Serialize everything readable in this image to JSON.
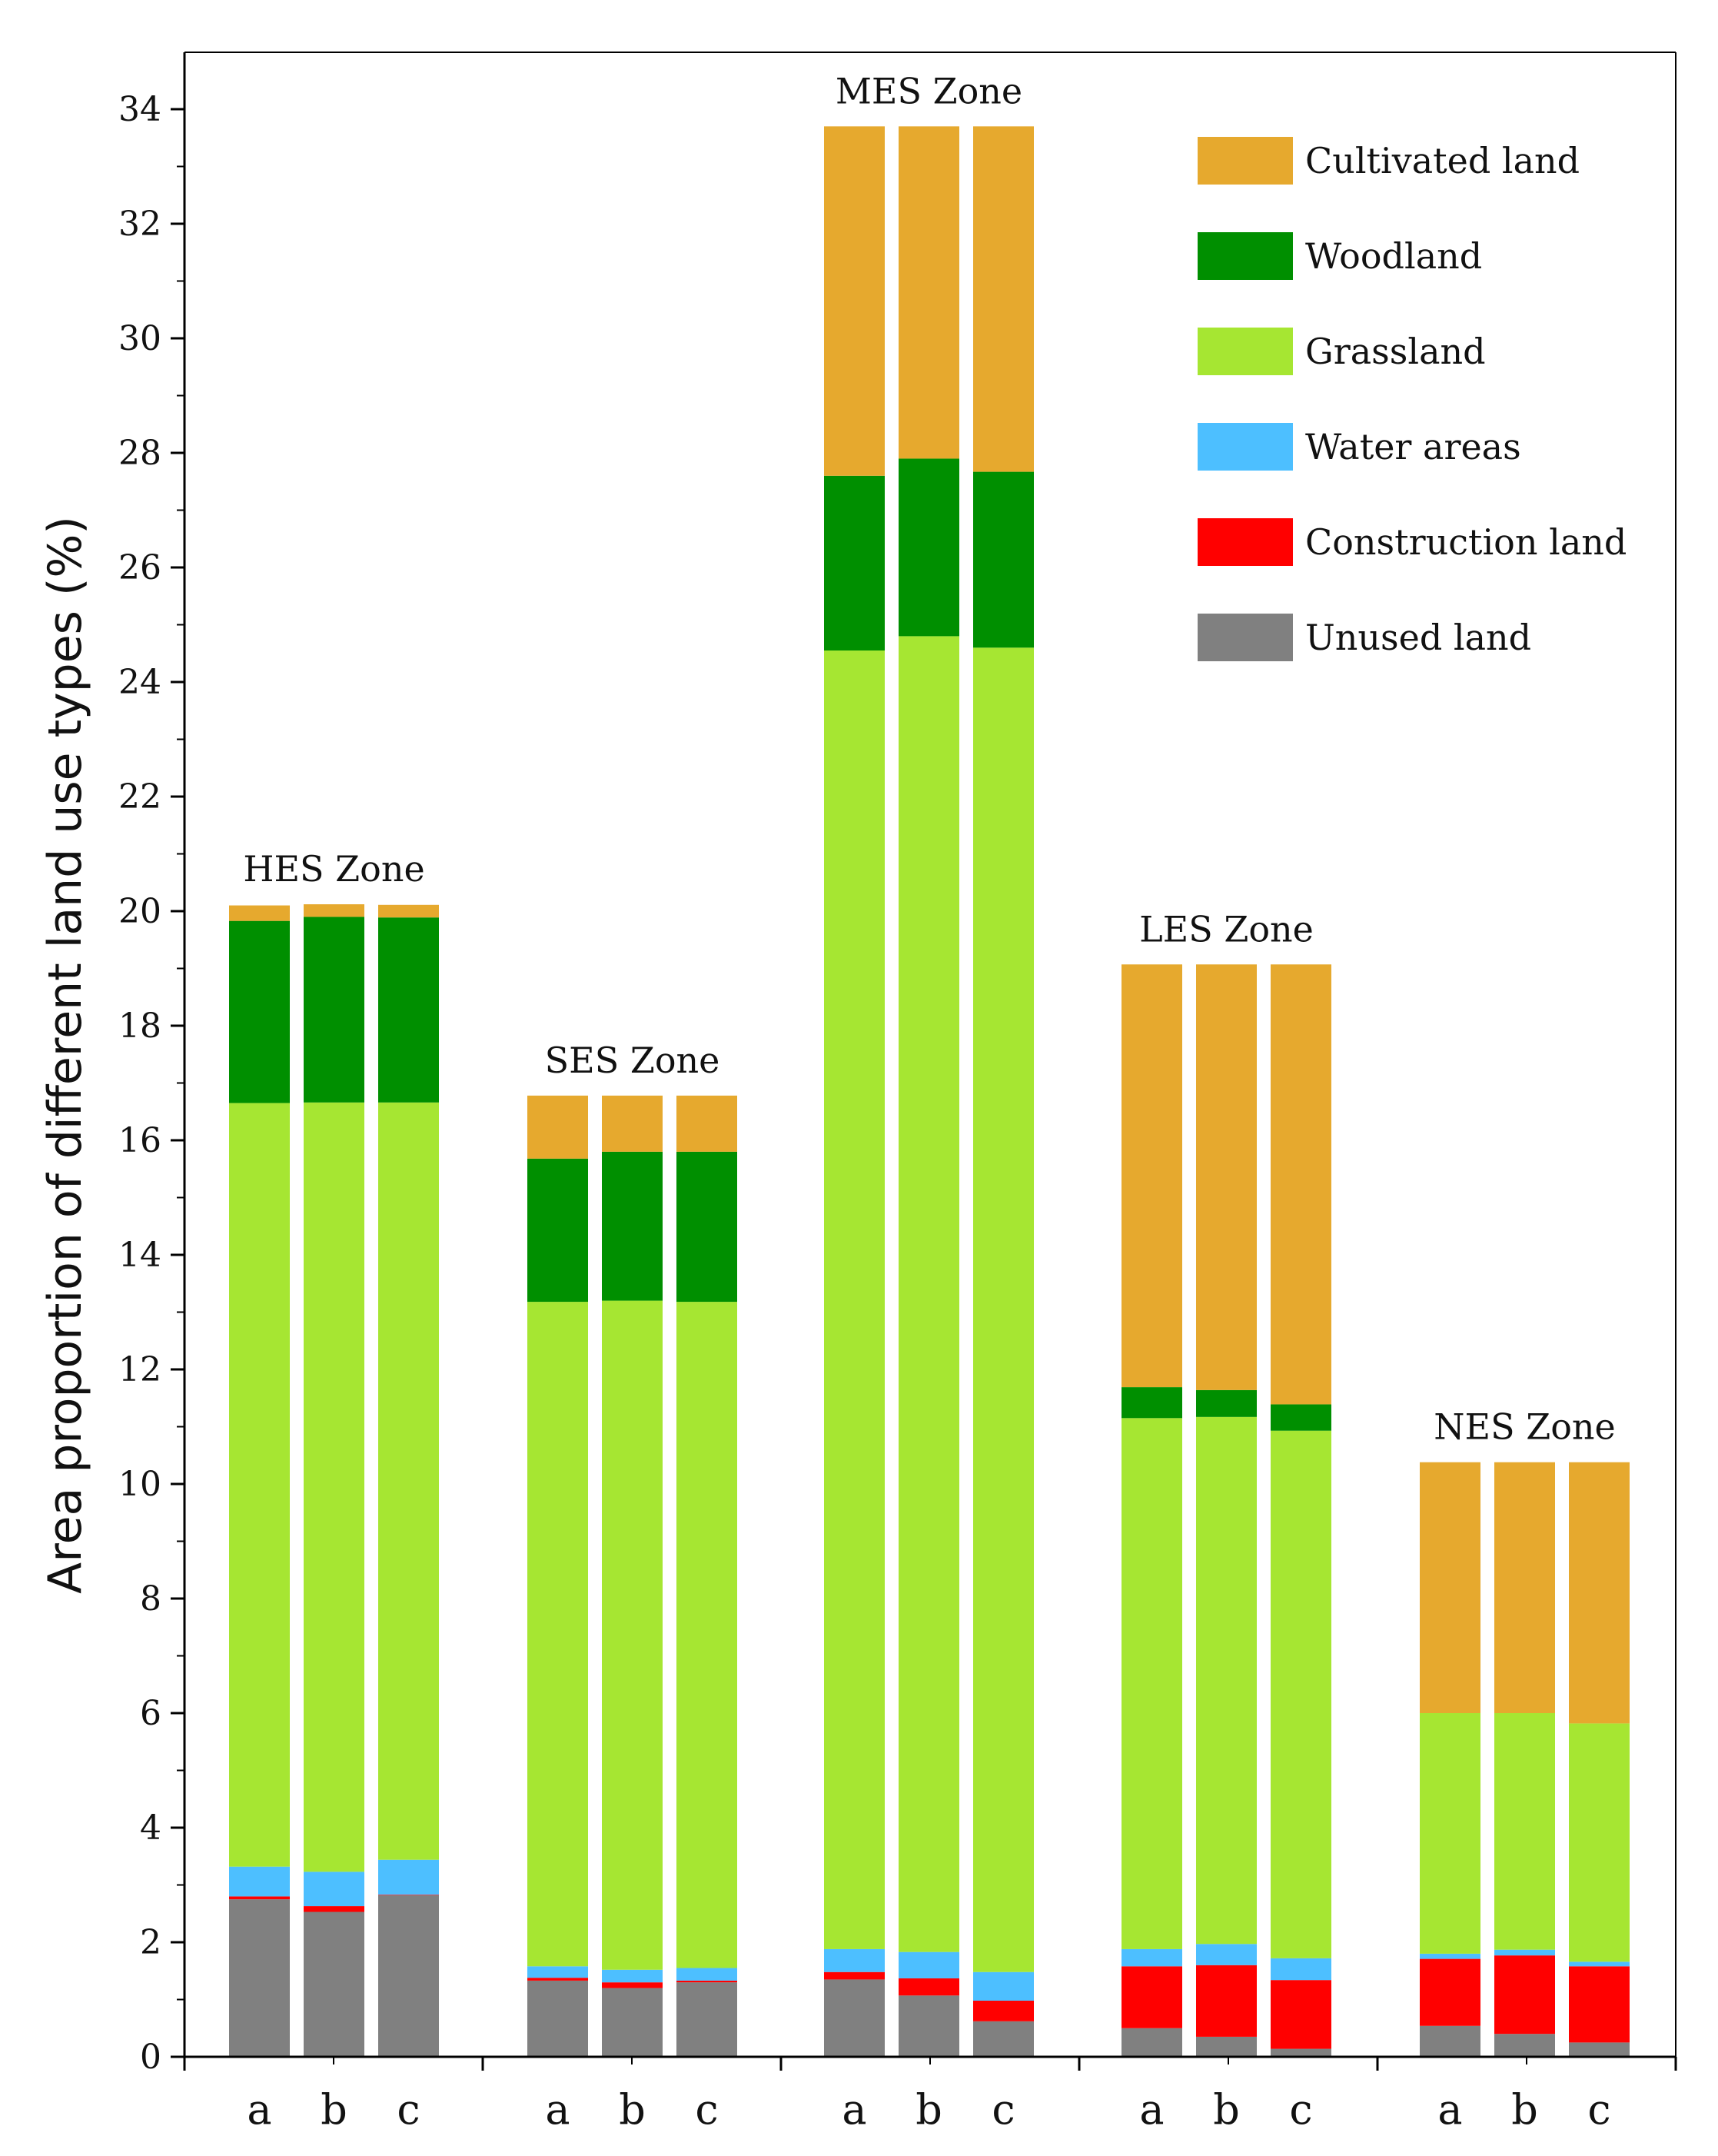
{
  "chart_data": {
    "type": "bar",
    "stacked": true,
    "ylabel": "Area proportion of different land use types (%)",
    "xlabel": "",
    "ylim": [
      0,
      35
    ],
    "yticks": [
      0,
      2,
      4,
      6,
      8,
      10,
      12,
      14,
      16,
      18,
      20,
      22,
      24,
      26,
      28,
      30,
      32,
      34
    ],
    "legend_position": "top-right",
    "series": [
      {
        "name": "Unused land",
        "color": "#808080"
      },
      {
        "name": "Construction land",
        "color": "#ff0000"
      },
      {
        "name": "Water areas",
        "color": "#4dbfff"
      },
      {
        "name": "Grassland",
        "color": "#a6e632"
      },
      {
        "name": "Woodland",
        "color": "#008f00"
      },
      {
        "name": "Cultivated land",
        "color": "#e6a92e"
      }
    ],
    "legend_order": [
      "Cultivated land",
      "Woodland",
      "Grassland",
      "Water areas",
      "Construction land",
      "Unused land"
    ],
    "groups": [
      {
        "zone": "HES Zone",
        "bars": [
          {
            "label": "a",
            "values": [
              2.75,
              0.05,
              0.52,
              13.33,
              3.18,
              0.27
            ]
          },
          {
            "label": "b",
            "values": [
              2.53,
              0.1,
              0.6,
              13.43,
              3.24,
              0.22
            ]
          },
          {
            "label": "c",
            "values": [
              2.82,
              0.01,
              0.61,
              13.22,
              3.23,
              0.22
            ]
          }
        ]
      },
      {
        "zone": "SES Zone",
        "bars": [
          {
            "label": "a",
            "values": [
              1.33,
              0.05,
              0.2,
              11.6,
              2.5,
              1.1
            ]
          },
          {
            "label": "b",
            "values": [
              1.2,
              0.1,
              0.22,
              11.68,
              2.6,
              0.98
            ]
          },
          {
            "label": "c",
            "values": [
              1.3,
              0.03,
              0.22,
              11.63,
              2.62,
              0.98
            ]
          }
        ]
      },
      {
        "zone": "MES Zone",
        "bars": [
          {
            "label": "a",
            "values": [
              1.35,
              0.13,
              0.4,
              22.67,
              3.05,
              6.1
            ]
          },
          {
            "label": "b",
            "values": [
              1.07,
              0.3,
              0.46,
              22.97,
              3.1,
              5.8
            ]
          },
          {
            "label": "c",
            "values": [
              0.62,
              0.36,
              0.5,
              23.12,
              3.07,
              6.03
            ]
          }
        ]
      },
      {
        "zone": "LES Zone",
        "bars": [
          {
            "label": "a",
            "values": [
              0.5,
              1.08,
              0.3,
              9.27,
              0.54,
              7.38
            ]
          },
          {
            "label": "b",
            "values": [
              0.35,
              1.25,
              0.37,
              9.2,
              0.47,
              7.43
            ]
          },
          {
            "label": "c",
            "values": [
              0.14,
              1.2,
              0.38,
              9.21,
              0.46,
              7.68
            ]
          }
        ]
      },
      {
        "zone": "NES Zone",
        "bars": [
          {
            "label": "a",
            "values": [
              0.54,
              1.17,
              0.09,
              4.2,
              0.0,
              4.38
            ]
          },
          {
            "label": "b",
            "values": [
              0.4,
              1.37,
              0.1,
              4.13,
              0.0,
              4.38
            ]
          },
          {
            "label": "c",
            "values": [
              0.25,
              1.33,
              0.08,
              4.16,
              0.0,
              4.56
            ]
          }
        ]
      }
    ]
  }
}
